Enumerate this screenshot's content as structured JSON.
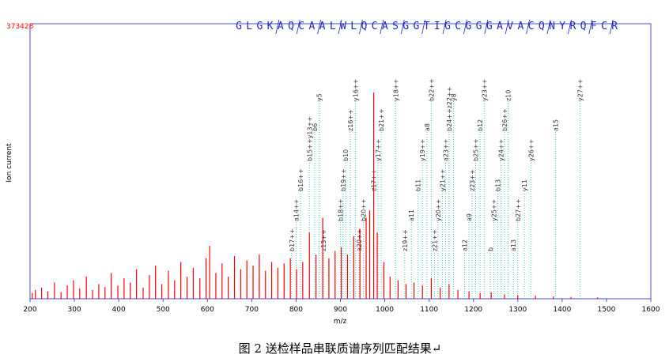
{
  "chart_data": {
    "type": "spectrum",
    "xlabel": "m/z",
    "ylabel": "Ion current",
    "caption": "图 2  送检样品串联质谱序列匹配结果↵",
    "sequence": [
      "G",
      "L",
      "G",
      "K",
      "A",
      "Q",
      "C",
      "A",
      "A",
      "L",
      "W",
      "L",
      "Q",
      "C",
      "A",
      "S",
      "G",
      "G",
      "T",
      "I",
      "G",
      "C",
      "G",
      "G",
      "G",
      "A",
      "V",
      "A",
      "C",
      "Q",
      "N",
      "Y",
      "R",
      "Q",
      "F",
      "C",
      "R"
    ],
    "xlim": [
      200,
      1600
    ],
    "xticks": [
      200,
      300,
      400,
      500,
      600,
      700,
      800,
      900,
      1000,
      1100,
      1200,
      1300,
      1400,
      1500,
      1600
    ],
    "ylim": [
      0,
      373428
    ],
    "color": "#ff0000",
    "annotation_color": "#33cccc",
    "x": [
      205,
      212,
      226,
      240,
      255,
      270,
      284,
      298,
      312,
      327,
      341,
      355,
      369,
      383,
      398,
      412,
      426,
      440,
      455,
      469,
      483,
      497,
      512,
      526,
      540,
      554,
      568,
      583,
      597,
      605,
      619,
      633,
      647,
      661,
      675,
      689,
      703,
      717,
      731,
      745,
      759,
      773,
      787,
      801,
      815,
      830,
      845,
      860,
      874,
      888,
      902,
      916,
      930,
      944,
      958,
      966,
      975,
      983,
      998,
      1012,
      1030,
      1048,
      1066,
      1085,
      1105,
      1125,
      1145,
      1165,
      1190,
      1215,
      1240,
      1270,
      1300,
      1340,
      1380,
      1420,
      1480
    ],
    "values": [
      8000,
      12000,
      15000,
      10000,
      22000,
      9000,
      18000,
      25000,
      14000,
      30000,
      12000,
      20000,
      16000,
      35000,
      18000,
      28000,
      22000,
      40000,
      15000,
      32000,
      45000,
      20000,
      38000,
      25000,
      50000,
      30000,
      42000,
      28000,
      55000,
      72000,
      35000,
      48000,
      30000,
      58000,
      40000,
      52000,
      45000,
      60000,
      38000,
      50000,
      42000,
      48000,
      55000,
      40000,
      50000,
      90000,
      60000,
      110000,
      55000,
      65000,
      70000,
      60000,
      85000,
      95000,
      110000,
      120000,
      280000,
      90000,
      50000,
      30000,
      25000,
      20000,
      22000,
      18000,
      28000,
      15000,
      20000,
      12000,
      10000,
      8000,
      9000,
      6000,
      5000,
      4000,
      3000,
      2500,
      2000
    ],
    "annotations": [
      {
        "label": "b17++",
        "x": 790
      },
      {
        "label": "a14++",
        "x": 800
      },
      {
        "label": "b16++",
        "x": 810
      },
      {
        "label": "b15++y13++",
        "x": 830
      },
      {
        "label": "b6",
        "x": 842
      },
      {
        "label": "y5",
        "x": 852
      },
      {
        "label": "z13++",
        "x": 862
      },
      {
        "label": "b18++",
        "x": 900
      },
      {
        "label": "b19++",
        "x": 906
      },
      {
        "label": "b10",
        "x": 912
      },
      {
        "label": "z16++",
        "x": 922
      },
      {
        "label": "y16++",
        "x": 934
      },
      {
        "label": "a20++",
        "x": 942
      },
      {
        "label": "b20++",
        "x": 952
      },
      {
        "label": "z17++",
        "x": 975
      },
      {
        "label": "y17++",
        "x": 985
      },
      {
        "label": "b21++",
        "x": 992
      },
      {
        "label": "y18++",
        "x": 1025
      },
      {
        "label": "z19++",
        "x": 1045
      },
      {
        "label": "a11",
        "x": 1060
      },
      {
        "label": "b11",
        "x": 1075
      },
      {
        "label": "y19++",
        "x": 1085
      },
      {
        "label": "a8",
        "x": 1095
      },
      {
        "label": "b22++",
        "x": 1105
      },
      {
        "label": "z21++",
        "x": 1112
      },
      {
        "label": "y20++",
        "x": 1120
      },
      {
        "label": "y21++",
        "x": 1130
      },
      {
        "label": "a23++",
        "x": 1137
      },
      {
        "label": "b24++z22++",
        "x": 1145
      },
      {
        "label": "y8",
        "x": 1155
      },
      {
        "label": "a12",
        "x": 1180
      },
      {
        "label": "a9",
        "x": 1190
      },
      {
        "label": "z23++",
        "x": 1197
      },
      {
        "label": "b25++",
        "x": 1205
      },
      {
        "label": "b12",
        "x": 1215
      },
      {
        "label": "y23++",
        "x": 1225
      },
      {
        "label": "b",
        "x": 1238
      },
      {
        "label": "y25++",
        "x": 1246
      },
      {
        "label": "b13",
        "x": 1255
      },
      {
        "label": "y24++",
        "x": 1262
      },
      {
        "label": "b26++",
        "x": 1270
      },
      {
        "label": "z10",
        "x": 1278
      },
      {
        "label": "a13",
        "x": 1290
      },
      {
        "label": "b27++",
        "x": 1300
      },
      {
        "label": "y11",
        "x": 1315
      },
      {
        "label": "y26++",
        "x": 1330
      },
      {
        "label": "a15",
        "x": 1385
      },
      {
        "label": "y27++",
        "x": 1440
      }
    ]
  }
}
